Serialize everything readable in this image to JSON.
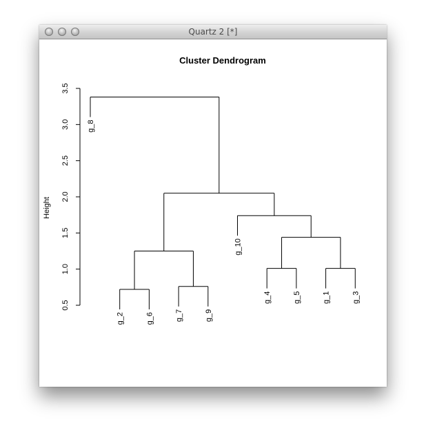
{
  "window": {
    "title": "Quartz 2 [*]"
  },
  "chart_data": {
    "type": "dendrogram",
    "title": "Cluster Dendrogram",
    "xlabel": "",
    "ylabel": "Height",
    "ylim": [
      0.5,
      3.5
    ],
    "yticks": [
      "0.5",
      "1.0",
      "1.5",
      "2.0",
      "2.5",
      "3.0",
      "3.5"
    ],
    "leaves": [
      "g_8",
      "g_2",
      "g_6",
      "g_7",
      "g_9",
      "g_10",
      "g_4",
      "g_5",
      "g_1",
      "g_3"
    ],
    "merges": [
      {
        "left": "g_2",
        "right": "g_6",
        "height": 0.72
      },
      {
        "left": "g_7",
        "right": "g_9",
        "height": 0.76
      },
      {
        "left": "g_4",
        "right": "g_5",
        "height": 1.01
      },
      {
        "left": "g_1",
        "right": "g_3",
        "height": 1.01
      },
      {
        "left": "(g_2,g_6)",
        "right": "(g_7,g_9)",
        "height": 1.25
      },
      {
        "left": "(g_4,g_5)",
        "right": "(g_1,g_3)",
        "height": 1.44
      },
      {
        "left": "g_10",
        "right": "(g_4,g_5,g_1,g_3)",
        "height": 1.74
      },
      {
        "left": "(g_2,g_6,g_7,g_9)",
        "right": "(g_10,g_4,g_5,g_1,g_3)",
        "height": 2.05
      },
      {
        "left": "g_8",
        "right": "(rest)",
        "height": 3.38
      }
    ]
  }
}
